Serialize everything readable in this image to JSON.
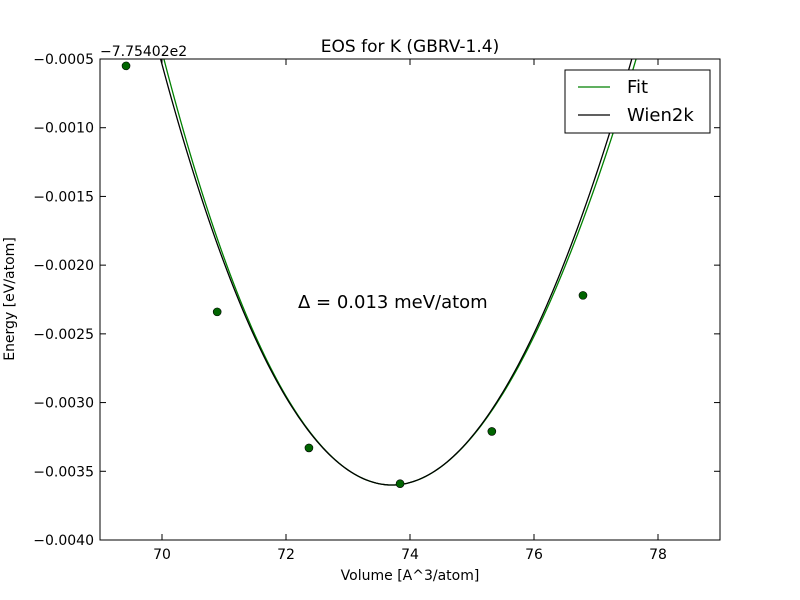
{
  "chart_data": {
    "type": "line",
    "title": "EOS for K (GBRV-1.4)",
    "xlabel": "Volume [A^3/atom]",
    "ylabel": "Energy [eV/atom]",
    "y_offset_label": "−7.75402e2",
    "annotation": "Δ = 0.013 meV/atom",
    "xlim": [
      69,
      79
    ],
    "ylim": [
      -0.004,
      -0.0005
    ],
    "x_ticks": [
      70,
      72,
      74,
      76,
      78
    ],
    "x_tick_labels": [
      "70",
      "72",
      "74",
      "76",
      "78"
    ],
    "y_ticks": [
      -0.004,
      -0.0035,
      -0.003,
      -0.0025,
      -0.002,
      -0.0015,
      -0.001,
      -0.0005
    ],
    "y_tick_labels": [
      "−0.0040",
      "−0.0035",
      "−0.0030",
      "−0.0025",
      "−0.0020",
      "−0.0015",
      "−0.0010",
      "−0.0005"
    ],
    "legend": {
      "placement": "top-right",
      "entries": [
        "Fit",
        "Wien2k"
      ]
    },
    "series": [
      {
        "name": "Fit",
        "color": "#008000",
        "style": "line",
        "min_volume": 73.71,
        "min_energy": -0.0036,
        "curvature": 0.000215,
        "cubic": -3.8e-06
      },
      {
        "name": "Wien2k",
        "color": "#000000",
        "style": "line",
        "min_volume": 73.71,
        "min_energy": -0.0036,
        "curvature": 0.000215,
        "cubic": -2e-06
      }
    ],
    "points": {
      "color": "#006400",
      "x": [
        69.42,
        70.89,
        72.37,
        73.84,
        75.32,
        76.79
      ],
      "y": [
        -0.00055,
        -0.00234,
        -0.00333,
        -0.00359,
        -0.00321,
        -0.00222
      ]
    },
    "grid": false
  }
}
